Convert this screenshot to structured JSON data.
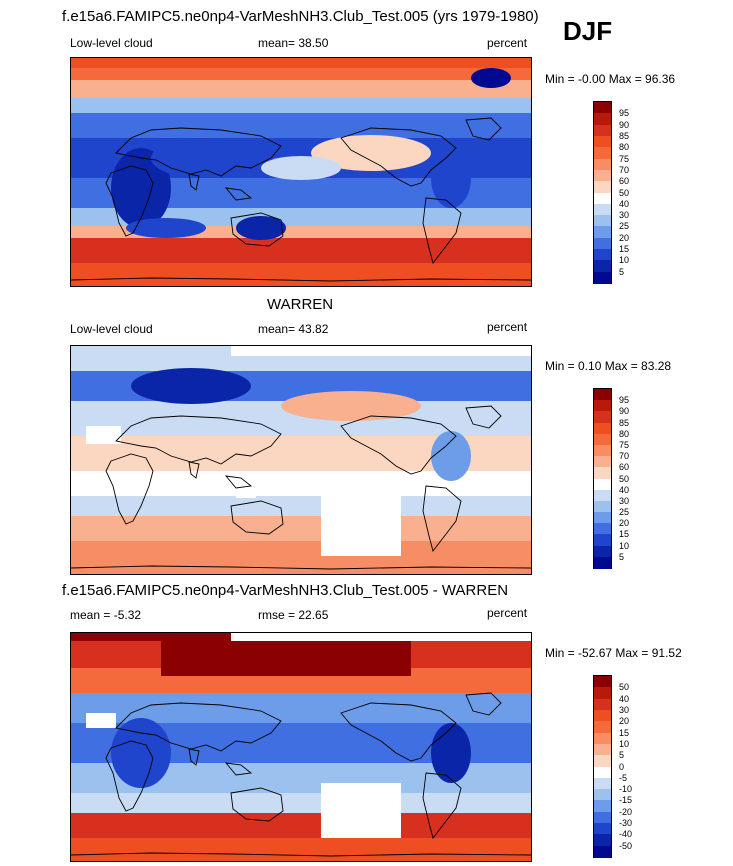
{
  "season": "DJF",
  "panels": [
    {
      "title": "f.e15a6.FAMIPC5.ne0np4-VarMeshNH3.Club_Test.005 (yrs 1979-1980)",
      "left_label": "Low-level cloud",
      "center_label": "mean=  38.50",
      "right_label": "percent",
      "minmax": "Min =  -0.00 Max =  96.36",
      "kind": "model"
    },
    {
      "title": "WARREN",
      "left_label": "Low-level cloud",
      "center_label": "mean=  43.82",
      "right_label": "percent",
      "minmax": "Min =   0.10 Max =  83.28",
      "kind": "obs"
    },
    {
      "title": "f.e15a6.FAMIPC5.ne0np4-VarMeshNH3.Club_Test.005 - WARREN",
      "left_label": "mean =  -5.32",
      "center_label": "rmse =  22.65",
      "right_label": "percent",
      "minmax": "Min = -52.67 Max =  91.52",
      "kind": "diff"
    }
  ],
  "colorbars": {
    "absolute": {
      "levels": [
        "95",
        "90",
        "85",
        "80",
        "75",
        "70",
        "60",
        "50",
        "40",
        "30",
        "25",
        "20",
        "15",
        "10",
        "5"
      ],
      "colors": [
        "#8b0000",
        "#b8190a",
        "#d7301f",
        "#ef4e23",
        "#f46a3c",
        "#f78d64",
        "#f8b08e",
        "#fbd6c0",
        "#ffffff",
        "#c9dcf3",
        "#9bc1ee",
        "#6d9ce8",
        "#3f6fe0",
        "#1f45cc",
        "#0b25a8",
        "#00098f"
      ]
    },
    "difference": {
      "levels": [
        "50",
        "40",
        "30",
        "20",
        "15",
        "10",
        "5",
        "0",
        "-5",
        "-10",
        "-15",
        "-20",
        "-30",
        "-40",
        "-50"
      ],
      "colors": [
        "#8b0000",
        "#b8190a",
        "#d7301f",
        "#ef4e23",
        "#f46a3c",
        "#f78d64",
        "#f8b08e",
        "#fbd6c0",
        "#ffffff",
        "#c9dcf3",
        "#9bc1ee",
        "#6d9ce8",
        "#3f6fe0",
        "#1f45cc",
        "#0b25a8",
        "#00098f"
      ]
    }
  }
}
